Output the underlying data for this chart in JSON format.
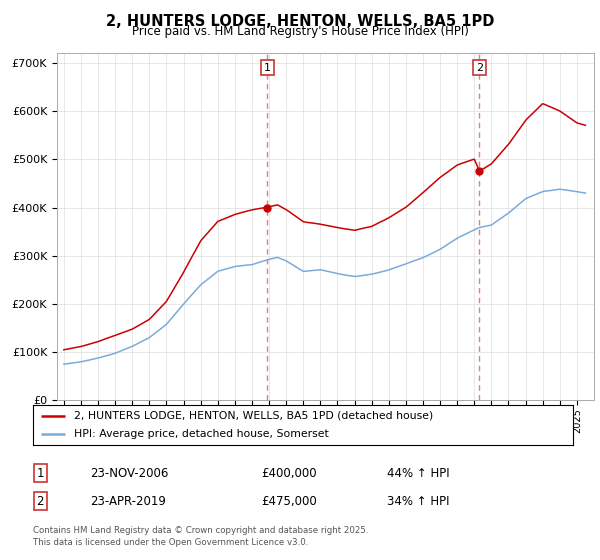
{
  "title": "2, HUNTERS LODGE, HENTON, WELLS, BA5 1PD",
  "subtitle": "Price paid vs. HM Land Registry's House Price Index (HPI)",
  "legend_line1": "2, HUNTERS LODGE, HENTON, WELLS, BA5 1PD (detached house)",
  "legend_line2": "HPI: Average price, detached house, Somerset",
  "annotation1_label": "1",
  "annotation1_date": "23-NOV-2006",
  "annotation1_price": "£400,000",
  "annotation1_hpi": "44% ↑ HPI",
  "annotation2_label": "2",
  "annotation2_date": "23-APR-2019",
  "annotation2_price": "£475,000",
  "annotation2_hpi": "34% ↑ HPI",
  "footer": "Contains HM Land Registry data © Crown copyright and database right 2025.\nThis data is licensed under the Open Government Licence v3.0.",
  "red_color": "#cc0000",
  "blue_color": "#7aabdb",
  "vline_color": "#e08080",
  "ylim": [
    0,
    720000
  ],
  "yticks": [
    0,
    100000,
    200000,
    300000,
    400000,
    500000,
    600000,
    700000
  ],
  "ytick_labels": [
    "£0",
    "£100K",
    "£200K",
    "£300K",
    "£400K",
    "£500K",
    "£600K",
    "£700K"
  ],
  "t1": 2006.9,
  "t1_price": 400000,
  "t2": 2019.3,
  "t2_price": 475000
}
